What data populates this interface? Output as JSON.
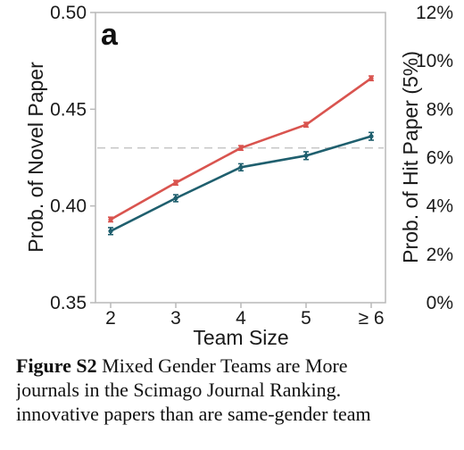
{
  "chart_data": {
    "type": "line",
    "panel_label": "a",
    "xlabel": "Team Size",
    "ylabel": "Prob. of Novel Paper",
    "ylabel_right": "Prob. of Hit Paper (5%)",
    "categories": [
      "2",
      "3",
      "4",
      "5",
      "≥ 6"
    ],
    "ylim": [
      0.35,
      0.5
    ],
    "yticks": [
      "0.35",
      "0.40",
      "0.45",
      "0.50"
    ],
    "ylim_right": [
      0,
      12
    ],
    "yticks_right": [
      "0%",
      "2%",
      "4%",
      "6%",
      "8%",
      "10%",
      "12%"
    ],
    "series": [
      {
        "values": [
          0.393,
          0.412,
          0.43,
          0.442,
          0.466
        ],
        "errors": [
          0.0012,
          0.0012,
          0.0012,
          0.0012,
          0.0012
        ],
        "color": "#d9544f"
      },
      {
        "values": [
          0.387,
          0.404,
          0.42,
          0.426,
          0.436
        ],
        "errors": [
          0.0018,
          0.0018,
          0.0018,
          0.002,
          0.002
        ],
        "color": "#1f5f6e"
      }
    ],
    "reference_line": {
      "value": 0.43,
      "style": "dashed",
      "color": "#c8c8c8"
    },
    "grid": false
  },
  "caption": {
    "label": "Figure S2",
    "line1": " Mixed Gender Teams are More",
    "line2": "journals in the Scimago Journal Ranking.",
    "line3": "innovative papers than are same-gender team"
  }
}
